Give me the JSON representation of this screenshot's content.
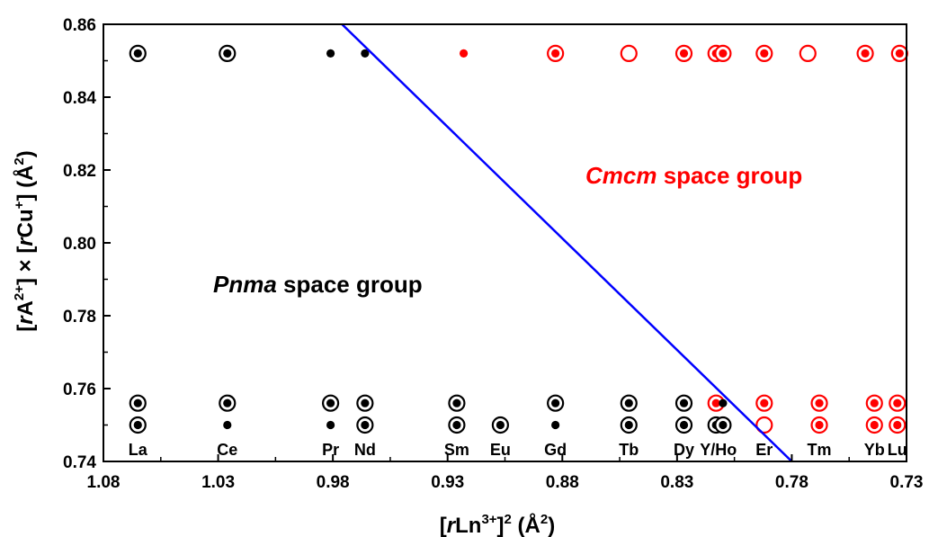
{
  "chart_data": {
    "type": "scatter",
    "title": "",
    "xlabel": "[rLn3+]2 (Å2)",
    "ylabel": "[rA2+] × [rCu+] (Å2)",
    "xlim": [
      1.08,
      0.73
    ],
    "ylim": [
      0.74,
      0.86
    ],
    "x_reversed": true,
    "grid": false,
    "x_ticks": [
      "1.08",
      "1.03",
      "0.98",
      "0.93",
      "0.88",
      "0.83",
      "0.78",
      "0.73"
    ],
    "x_tick_values": [
      1.08,
      1.03,
      0.98,
      0.93,
      0.88,
      0.83,
      0.78,
      0.73
    ],
    "y_ticks": [
      "0.74",
      "0.76",
      "0.78",
      "0.80",
      "0.82",
      "0.84",
      "0.86"
    ],
    "y_tick_values": [
      0.74,
      0.76,
      0.78,
      0.8,
      0.82,
      0.84,
      0.86
    ],
    "element_labels": [
      {
        "text": "La",
        "x": 1.065
      },
      {
        "text": "Ce",
        "x": 1.026
      },
      {
        "text": "Pr",
        "x": 0.981
      },
      {
        "text": "Nd",
        "x": 0.966
      },
      {
        "text": "Sm",
        "x": 0.926
      },
      {
        "text": "Eu",
        "x": 0.907
      },
      {
        "text": "Gd",
        "x": 0.883
      },
      {
        "text": "Tb",
        "x": 0.851
      },
      {
        "text": "Dy",
        "x": 0.827
      },
      {
        "text": "Y/Ho",
        "x": 0.812
      },
      {
        "text": "Er",
        "x": 0.792
      },
      {
        "text": "Tm",
        "x": 0.768
      },
      {
        "text": "Yb",
        "x": 0.744
      },
      {
        "text": "Lu",
        "x": 0.734
      }
    ],
    "annotations": [
      {
        "italic": "Pnma",
        "rest": " space group",
        "color": "#000000"
      },
      {
        "italic": "Cmcm",
        "rest": " space group",
        "color": "#ff0000"
      }
    ],
    "boundary_line": {
      "color": "#0000ff",
      "points": [
        [
          0.976,
          0.86
        ],
        [
          0.78,
          0.74
        ]
      ]
    },
    "legend_encoding": {
      "black": "Pnma",
      "red": "Cmcm",
      "dot": "filled dot",
      "ring": "open circle",
      "dot_ring": "dot inside open circle"
    },
    "points": [
      {
        "x": 1.065,
        "y": 0.852,
        "color": "black",
        "marker": "dot_ring"
      },
      {
        "x": 1.026,
        "y": 0.852,
        "color": "black",
        "marker": "dot_ring"
      },
      {
        "x": 0.981,
        "y": 0.852,
        "color": "black",
        "marker": "dot"
      },
      {
        "x": 0.966,
        "y": 0.852,
        "color": "black",
        "marker": "dot"
      },
      {
        "x": 0.923,
        "y": 0.852,
        "color": "red",
        "marker": "dot"
      },
      {
        "x": 0.883,
        "y": 0.852,
        "color": "red",
        "marker": "dot_ring"
      },
      {
        "x": 0.851,
        "y": 0.852,
        "color": "red",
        "marker": "ring"
      },
      {
        "x": 0.827,
        "y": 0.852,
        "color": "red",
        "marker": "dot_ring"
      },
      {
        "x": 0.813,
        "y": 0.852,
        "color": "red",
        "marker": "dot_ring"
      },
      {
        "x": 0.81,
        "y": 0.852,
        "color": "red",
        "marker": "dot_ring"
      },
      {
        "x": 0.792,
        "y": 0.852,
        "color": "red",
        "marker": "dot_ring"
      },
      {
        "x": 0.773,
        "y": 0.852,
        "color": "red",
        "marker": "ring"
      },
      {
        "x": 0.748,
        "y": 0.852,
        "color": "red",
        "marker": "dot_ring"
      },
      {
        "x": 0.733,
        "y": 0.852,
        "color": "red",
        "marker": "dot_ring"
      },
      {
        "x": 1.065,
        "y": 0.756,
        "color": "black",
        "marker": "dot_ring"
      },
      {
        "x": 1.026,
        "y": 0.756,
        "color": "black",
        "marker": "dot_ring"
      },
      {
        "x": 0.981,
        "y": 0.756,
        "color": "black",
        "marker": "dot_ring"
      },
      {
        "x": 0.966,
        "y": 0.756,
        "color": "black",
        "marker": "dot_ring"
      },
      {
        "x": 0.926,
        "y": 0.756,
        "color": "black",
        "marker": "dot_ring"
      },
      {
        "x": 0.883,
        "y": 0.756,
        "color": "black",
        "marker": "dot_ring"
      },
      {
        "x": 0.851,
        "y": 0.756,
        "color": "black",
        "marker": "dot_ring"
      },
      {
        "x": 0.827,
        "y": 0.756,
        "color": "black",
        "marker": "dot_ring"
      },
      {
        "x": 0.813,
        "y": 0.756,
        "color": "red",
        "marker": "dot_ring"
      },
      {
        "x": 0.81,
        "y": 0.756,
        "color": "black",
        "marker": "dot"
      },
      {
        "x": 0.792,
        "y": 0.756,
        "color": "red",
        "marker": "dot_ring"
      },
      {
        "x": 0.768,
        "y": 0.756,
        "color": "red",
        "marker": "dot_ring"
      },
      {
        "x": 0.744,
        "y": 0.756,
        "color": "red",
        "marker": "dot_ring"
      },
      {
        "x": 0.734,
        "y": 0.756,
        "color": "red",
        "marker": "dot_ring"
      },
      {
        "x": 1.065,
        "y": 0.75,
        "color": "black",
        "marker": "dot_ring"
      },
      {
        "x": 1.026,
        "y": 0.75,
        "color": "black",
        "marker": "dot"
      },
      {
        "x": 0.981,
        "y": 0.75,
        "color": "black",
        "marker": "dot"
      },
      {
        "x": 0.966,
        "y": 0.75,
        "color": "black",
        "marker": "dot_ring"
      },
      {
        "x": 0.926,
        "y": 0.75,
        "color": "black",
        "marker": "dot_ring"
      },
      {
        "x": 0.907,
        "y": 0.75,
        "color": "black",
        "marker": "dot_ring"
      },
      {
        "x": 0.883,
        "y": 0.75,
        "color": "black",
        "marker": "dot"
      },
      {
        "x": 0.851,
        "y": 0.75,
        "color": "black",
        "marker": "dot_ring"
      },
      {
        "x": 0.827,
        "y": 0.75,
        "color": "black",
        "marker": "dot_ring"
      },
      {
        "x": 0.813,
        "y": 0.75,
        "color": "black",
        "marker": "dot_ring"
      },
      {
        "x": 0.81,
        "y": 0.75,
        "color": "black",
        "marker": "dot_ring"
      },
      {
        "x": 0.792,
        "y": 0.75,
        "color": "black",
        "marker": "dot"
      },
      {
        "x": 0.792,
        "y": 0.75,
        "color": "red",
        "marker": "ring"
      },
      {
        "x": 0.768,
        "y": 0.75,
        "color": "red",
        "marker": "dot_ring"
      },
      {
        "x": 0.744,
        "y": 0.75,
        "color": "red",
        "marker": "dot_ring"
      },
      {
        "x": 0.734,
        "y": 0.75,
        "color": "red",
        "marker": "dot_ring"
      }
    ],
    "colors": {
      "black": "#000000",
      "red": "#ff0000",
      "line": "#0000ff"
    }
  }
}
